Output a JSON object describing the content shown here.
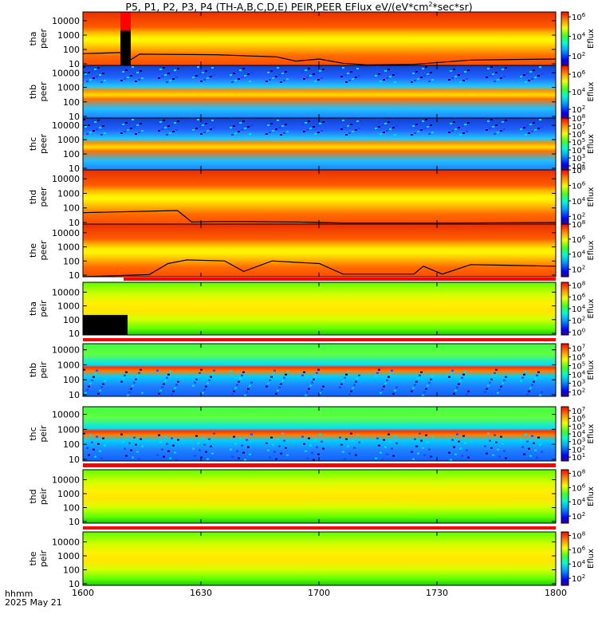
{
  "title": {
    "main": "P5, P1, P2, P3, P4 (TH-A,B,C,D,E) PEIR,PEER EFlux eV/(eV*cm",
    "sup": "2",
    "tail": "*sec*sr)"
  },
  "stamp": {
    "format": "hhmm",
    "date": "2025 May 21"
  },
  "colors": {
    "background_level": "#dc2800",
    "fill_level": "#e84a00",
    "bar_red": "#ff0000",
    "overlay_line": "#000000"
  },
  "chart_data": {
    "type": "heatmap",
    "x_axis": {
      "range": [
        "1600",
        "1800"
      ],
      "ticks": [
        "1600",
        "1630",
        "1700",
        "1730",
        "1800"
      ]
    },
    "y_axis": {
      "scale": "log",
      "ticks": [
        "10",
        "100",
        "1000",
        "10000"
      ]
    },
    "colorbar_label": "Eflux",
    "panels": [
      {
        "id": "tha-peer",
        "y1": "tha",
        "y2": "peer",
        "cbar_ticks": [
          [
            "10",
            "6"
          ],
          [
            "10",
            "4"
          ],
          [
            "10",
            "2"
          ]
        ],
        "cmin_exp": 1,
        "cmax_exp": 6.5,
        "ymax_exp": 4.5
      },
      {
        "id": "thb-peer",
        "y1": "thb",
        "y2": "peer",
        "cbar_ticks": [
          [
            "10",
            "6"
          ],
          [
            "10",
            "4"
          ],
          [
            "10",
            "2"
          ]
        ],
        "cmin_exp": 1,
        "cmax_exp": 7,
        "ymax_exp": 4.4
      },
      {
        "id": "thc-peer",
        "y1": "thc",
        "y2": "peer",
        "cbar_ticks": [
          [
            "10",
            "8"
          ],
          [
            "10",
            "7"
          ],
          [
            "10",
            "6"
          ],
          [
            "10",
            "5"
          ],
          [
            "10",
            "4"
          ],
          [
            "10",
            "3"
          ],
          [
            "10",
            "2"
          ]
        ],
        "cmin_exp": 1.5,
        "cmax_exp": 8,
        "ymax_exp": 4.4
      },
      {
        "id": "thd-peer",
        "y1": "thd",
        "y2": "peer",
        "cbar_ticks": [
          [
            "10",
            "8"
          ],
          [
            "10",
            "6"
          ],
          [
            "10",
            "4"
          ],
          [
            "10",
            "2"
          ]
        ],
        "cmin_exp": 1,
        "cmax_exp": 8,
        "ymax_exp": 4.5
      },
      {
        "id": "the-peer",
        "y1": "the",
        "y2": "peer",
        "cbar_ticks": [
          [
            "10",
            "8"
          ],
          [
            "10",
            "6"
          ],
          [
            "10",
            "4"
          ],
          [
            "10",
            "2"
          ]
        ],
        "cmin_exp": 1,
        "cmax_exp": 8,
        "ymax_exp": 4.5
      },
      {
        "id": "tha-peir",
        "y1": "tha",
        "y2": "peir",
        "cbar_ticks": [
          [
            "10",
            "8"
          ],
          [
            "10",
            "6"
          ],
          [
            "10",
            "4"
          ],
          [
            "10",
            "2"
          ],
          [
            "10",
            "0"
          ]
        ],
        "cmin_exp": -0.5,
        "cmax_exp": 8.5,
        "ymax_exp": 4.6
      },
      {
        "id": "thb-peir",
        "y1": "thb",
        "y2": "peir",
        "cbar_ticks": [
          [
            "10",
            "7"
          ],
          [
            "10",
            "6"
          ],
          [
            "10",
            "5"
          ],
          [
            "10",
            "4"
          ],
          [
            "10",
            "3"
          ],
          [
            "10",
            "2"
          ]
        ],
        "cmin_exp": 1.5,
        "cmax_exp": 7.5,
        "ymax_exp": 4.3
      },
      {
        "id": "thc-peir",
        "y1": "thc",
        "y2": "peir",
        "cbar_ticks": [
          [
            "10",
            "7"
          ],
          [
            "10",
            "6"
          ],
          [
            "10",
            "5"
          ],
          [
            "10",
            "4"
          ],
          [
            "10",
            "3"
          ],
          [
            "10",
            "2"
          ],
          [
            "10",
            "1"
          ]
        ],
        "cmin_exp": 0.5,
        "cmax_exp": 7.5,
        "ymax_exp": 4.4
      },
      {
        "id": "thd-peir",
        "y1": "thd",
        "y2": "peir",
        "cbar_ticks": [
          [
            "10",
            "8"
          ],
          [
            "10",
            "6"
          ],
          [
            "10",
            "4"
          ],
          [
            "10",
            "2"
          ]
        ],
        "cmin_exp": 1,
        "cmax_exp": 8.5,
        "ymax_exp": 4.6
      },
      {
        "id": "the-peir",
        "y1": "the",
        "y2": "peir",
        "cbar_ticks": [
          [
            "10",
            "8"
          ],
          [
            "10",
            "6"
          ],
          [
            "10",
            "4"
          ],
          [
            "10",
            "2"
          ]
        ],
        "cmin_exp": 1,
        "cmax_exp": 8.5,
        "ymax_exp": 4.6
      }
    ]
  }
}
